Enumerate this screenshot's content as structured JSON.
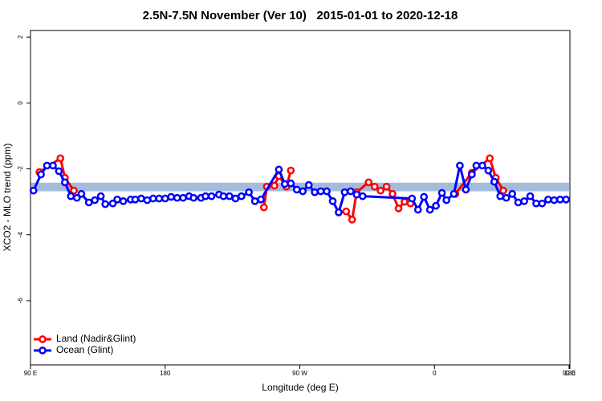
{
  "chart_data": {
    "type": "line",
    "title": "2.5N-7.5N November (Ver 10)   2015-01-01 to 2020-12-18",
    "x_label": "Longitude (deg E)",
    "y_label": "XCO2 - MLO trend (ppm)",
    "xlim": [
      90,
      450
    ],
    "xticks": [
      {
        "value": 90,
        "label": "90 E"
      },
      180,
      {
        "value": 270,
        "label": "90 W"
      },
      {
        "value": 360,
        "label": "0"
      },
      {
        "value": 450,
        "label": "90 E"
      },
      {
        "value": 540,
        "label": "180"
      }
    ],
    "ylim": [
      -7.95,
      2.2
    ],
    "yticks": [
      2,
      0,
      -2,
      -4,
      -6
    ],
    "band": [
      -2.68,
      -2.42
    ],
    "band_color": "#a4bcdc",
    "legend": "bottom-left",
    "series": [
      {
        "name": "Land (Nadir&Glint)",
        "color": "#ff0000",
        "x": [
          96,
          110,
          113,
          119,
          null,
          246,
          248,
          253,
          256,
          261,
          264,
          null,
          301,
          305,
          308,
          316,
          320,
          324,
          328,
          332,
          336,
          340,
          344,
          null,
          374,
          385,
          397,
          401,
          406
        ],
        "values": [
          -2.1,
          -1.68,
          -2.27,
          -2.66,
          null,
          -3.17,
          -2.54,
          -2.51,
          -2.22,
          -2.54,
          -2.05,
          null,
          -3.29,
          -3.54,
          -2.71,
          -2.41,
          -2.54,
          -2.66,
          -2.54,
          -2.76,
          -3.2,
          -3.0,
          -3.05,
          null,
          -2.76,
          -2.12,
          -1.68,
          -2.27,
          -2.66
        ]
      },
      {
        "name": "Ocean (Glint)",
        "color": "#0000ff",
        "x": [
          92,
          97,
          101,
          105,
          109,
          113,
          117,
          121,
          124,
          129,
          133,
          137,
          140,
          145,
          148,
          152,
          157,
          160,
          164,
          168,
          172,
          176,
          180,
          184,
          188,
          192,
          196,
          199,
          204,
          207,
          211,
          216,
          219,
          223,
          227,
          231,
          236,
          240,
          244,
          256,
          260,
          264,
          268,
          272,
          276,
          280,
          284,
          288,
          292,
          296,
          300,
          304,
          308,
          312,
          345,
          349,
          353,
          357,
          361,
          365,
          368,
          373,
          377,
          381,
          385,
          388,
          392,
          396,
          400,
          404,
          408,
          412,
          416,
          420,
          424,
          428,
          432,
          436,
          440,
          444,
          448
        ],
        "values": [
          -2.66,
          -2.17,
          -1.9,
          -1.9,
          -2.07,
          -2.41,
          -2.83,
          -2.88,
          -2.76,
          -3.02,
          -2.95,
          -2.83,
          -3.07,
          -3.05,
          -2.93,
          -2.98,
          -2.93,
          -2.93,
          -2.9,
          -2.95,
          -2.9,
          -2.9,
          -2.9,
          -2.85,
          -2.88,
          -2.88,
          -2.83,
          -2.88,
          -2.88,
          -2.83,
          -2.83,
          -2.78,
          -2.83,
          -2.83,
          -2.9,
          -2.83,
          -2.71,
          -2.98,
          -2.93,
          -2.02,
          -2.46,
          -2.44,
          -2.63,
          -2.68,
          -2.49,
          -2.71,
          -2.68,
          -2.68,
          -2.98,
          -3.32,
          -2.71,
          -2.68,
          -2.78,
          -2.83,
          -2.9,
          -3.24,
          -2.85,
          -3.24,
          -3.12,
          -2.73,
          -2.95,
          -2.76,
          -1.9,
          -2.63,
          -2.17,
          -1.9,
          -1.9,
          -2.05,
          -2.39,
          -2.83,
          -2.88,
          -2.76,
          -3.02,
          -2.98,
          -2.83,
          -3.05,
          -3.05,
          -2.93,
          -2.95,
          -2.93,
          -2.93
        ]
      }
    ]
  }
}
